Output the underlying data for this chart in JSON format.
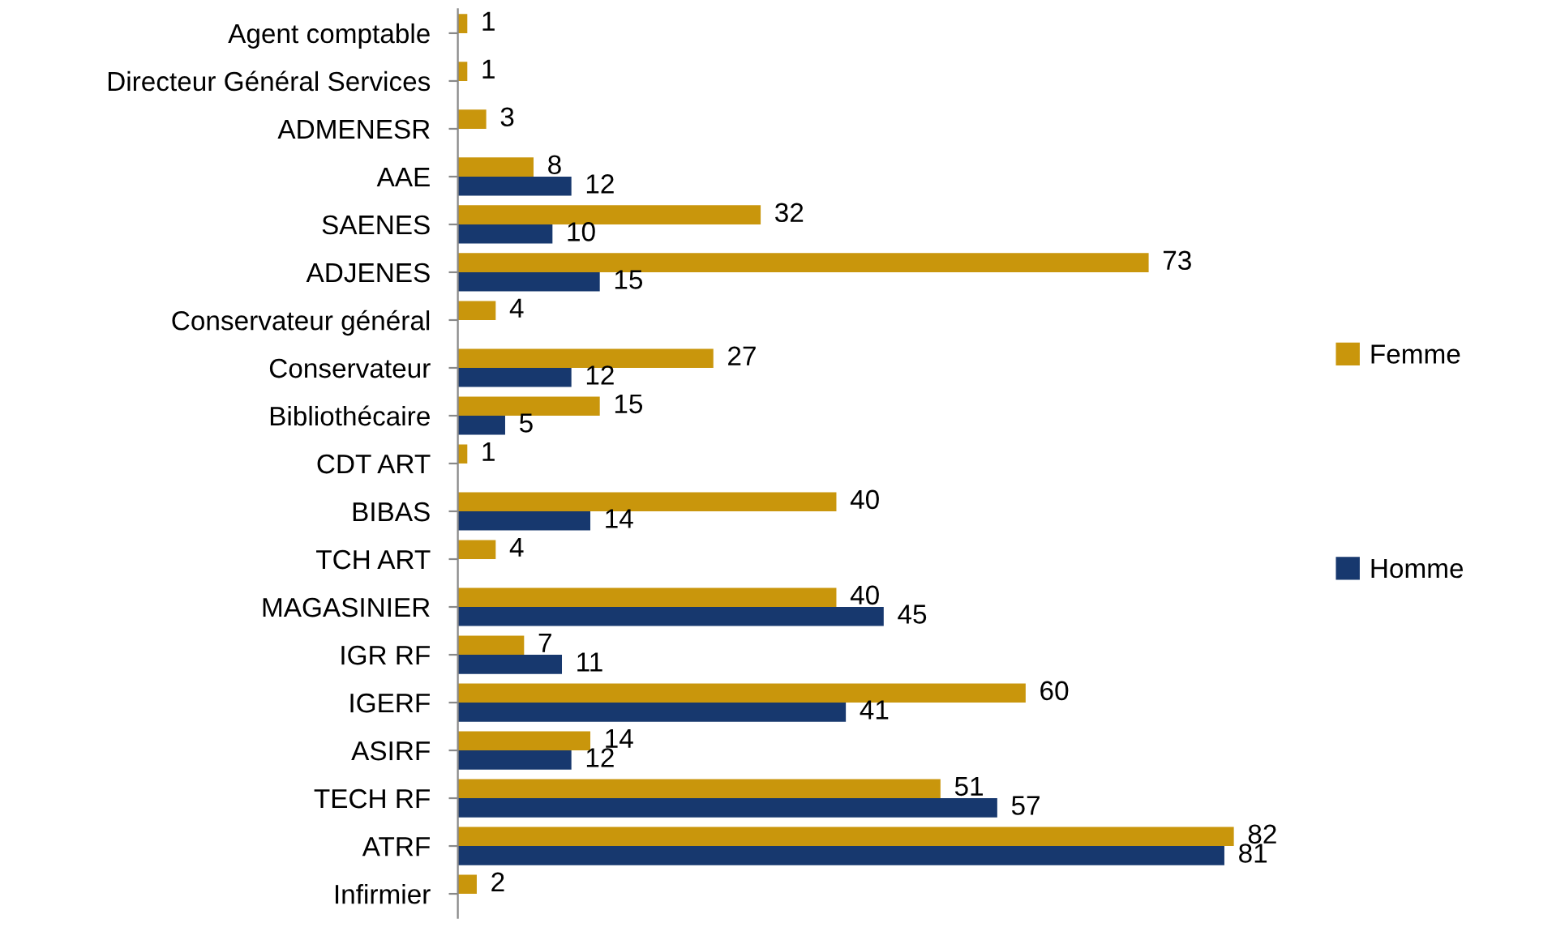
{
  "chart_data": {
    "type": "bar",
    "orientation": "horizontal",
    "categories": [
      "Agent comptable",
      "Directeur Général Services",
      "ADMENESR",
      "AAE",
      "SAENES",
      "ADJENES",
      "Conservateur général",
      "Conservateur",
      "Bibliothécaire",
      "CDT ART",
      "BIBAS",
      "TCH ART",
      "MAGASINIER",
      "IGR RF",
      "IGERF",
      "ASIRF",
      "TECH RF",
      "ATRF",
      "Infirmier"
    ],
    "series": [
      {
        "name": "Femme",
        "color": "#c9960c",
        "values": [
          1,
          1,
          3,
          8,
          32,
          73,
          4,
          27,
          15,
          1,
          40,
          4,
          40,
          7,
          60,
          14,
          51,
          82,
          2
        ]
      },
      {
        "name": "Homme",
        "color": "#17386e",
        "values": [
          null,
          null,
          null,
          12,
          10,
          15,
          null,
          12,
          5,
          null,
          14,
          null,
          45,
          11,
          41,
          12,
          57,
          81,
          null
        ]
      }
    ],
    "data_labels": true,
    "legend": "right",
    "grid": false,
    "tick_labels": "y"
  }
}
